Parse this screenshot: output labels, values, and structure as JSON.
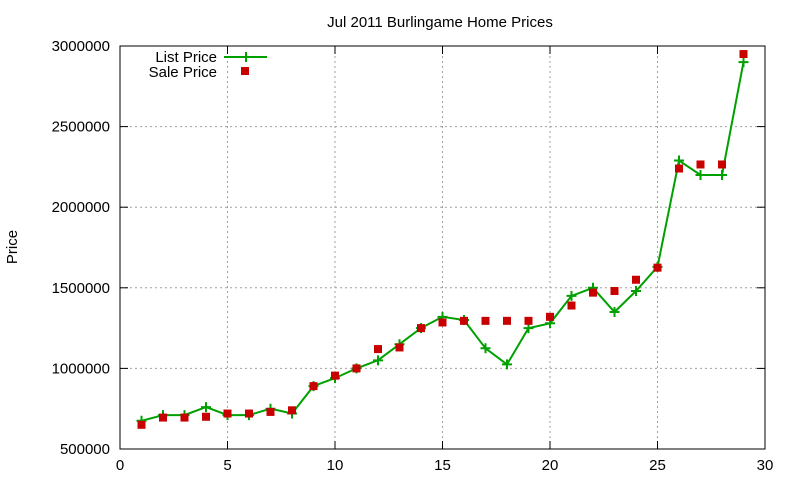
{
  "chart_data": {
    "type": "line",
    "title": "Jul 2011 Burlingame Home Prices",
    "xlabel": "",
    "ylabel": "Price",
    "xlim": [
      0,
      30
    ],
    "ylim": [
      500000,
      3000000
    ],
    "x_ticks": [
      0,
      5,
      10,
      15,
      20,
      25,
      30
    ],
    "y_ticks": [
      500000,
      1000000,
      1500000,
      2000000,
      2500000,
      3000000
    ],
    "grid": true,
    "legend_position": "top-left",
    "series": [
      {
        "name": "List Price",
        "style": "line-with-plus-markers",
        "color": "#00a000",
        "x": [
          1,
          2,
          3,
          4,
          5,
          6,
          7,
          8,
          9,
          10,
          11,
          12,
          13,
          14,
          15,
          16,
          17,
          18,
          19,
          20,
          21,
          22,
          23,
          24,
          25,
          26,
          27,
          28,
          29
        ],
        "values": [
          675000,
          710000,
          710000,
          760000,
          710000,
          710000,
          750000,
          720000,
          890000,
          940000,
          1000000,
          1050000,
          1150000,
          1250000,
          1320000,
          1300000,
          1125000,
          1025000,
          1250000,
          1280000,
          1450000,
          1500000,
          1350000,
          1480000,
          1630000,
          2290000,
          2200000,
          2200000,
          2900000
        ]
      },
      {
        "name": "Sale Price",
        "style": "square-markers",
        "color": "#c80000",
        "x": [
          1,
          2,
          3,
          4,
          5,
          6,
          7,
          8,
          9,
          10,
          11,
          12,
          13,
          14,
          15,
          16,
          17,
          18,
          19,
          20,
          21,
          22,
          23,
          24,
          25,
          26,
          27,
          28,
          29
        ],
        "values": [
          650000,
          695000,
          695000,
          700000,
          720000,
          720000,
          730000,
          740000,
          890000,
          955000,
          1000000,
          1120000,
          1130000,
          1250000,
          1285000,
          1295000,
          1295000,
          1295000,
          1295000,
          1320000,
          1390000,
          1470000,
          1480000,
          1550000,
          1625000,
          2240000,
          2265000,
          2265000,
          2950000
        ]
      }
    ]
  }
}
